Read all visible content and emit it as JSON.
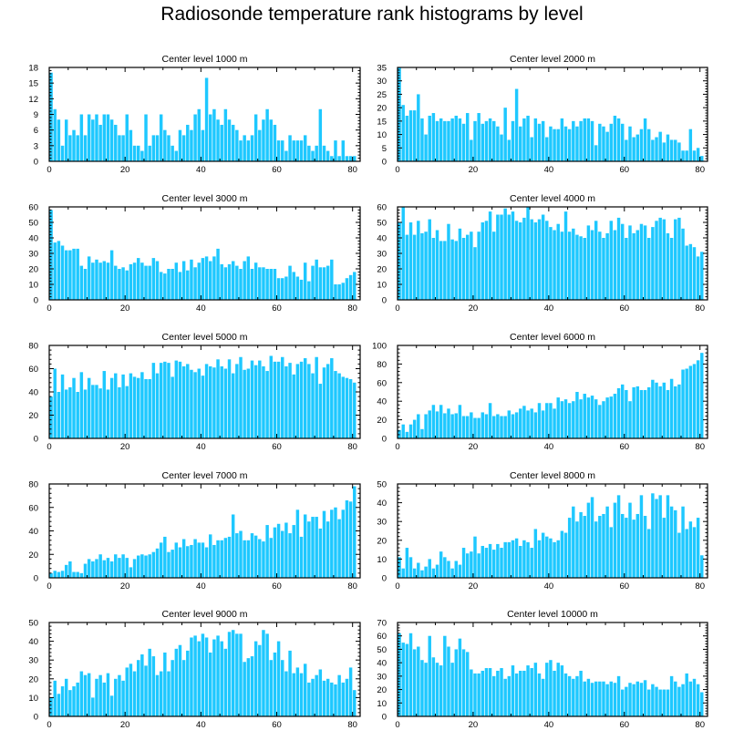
{
  "title": "Radiosonde temperature rank histograms by level",
  "colors": {
    "bar": "#1ec8ff",
    "bar_edge": "#ffffff",
    "axis": "#000000",
    "background": "#ffffff"
  },
  "chart_data": [
    {
      "type": "bar",
      "title": "Center level 1000 m",
      "xlim": [
        0,
        82
      ],
      "ylim": [
        0,
        18
      ],
      "xticks": [
        0,
        20,
        40,
        60,
        80
      ],
      "yticks": [
        0,
        3,
        6,
        9,
        12,
        15,
        18
      ],
      "values": [
        17,
        10,
        8,
        3,
        8,
        5,
        6,
        5,
        9,
        5,
        9,
        8,
        9,
        7,
        9,
        9,
        8,
        7,
        5,
        5,
        9,
        6,
        3,
        3,
        2,
        9,
        3,
        5,
        5,
        9,
        6,
        5,
        3,
        2,
        6,
        5,
        7,
        6,
        9,
        10,
        6,
        16,
        9,
        10,
        8,
        7,
        10,
        8,
        7,
        6,
        4,
        5,
        4,
        5,
        9,
        6,
        8,
        10,
        8,
        7,
        4,
        4,
        2,
        5,
        4,
        4,
        4,
        5,
        3,
        2,
        3,
        10,
        3,
        2,
        1,
        4,
        1,
        4,
        1,
        1,
        1
      ]
    },
    {
      "type": "bar",
      "title": "Center level 2000 m",
      "xlim": [
        0,
        82
      ],
      "ylim": [
        0,
        35
      ],
      "xticks": [
        0,
        20,
        40,
        60,
        80
      ],
      "yticks": [
        0,
        5,
        10,
        15,
        20,
        25,
        30,
        35
      ],
      "values": [
        35,
        21,
        17,
        19,
        19,
        25,
        16,
        10,
        17,
        18,
        15,
        16,
        15,
        15,
        16,
        17,
        16,
        14,
        18,
        8,
        15,
        18,
        14,
        15,
        16,
        15,
        13,
        10,
        20,
        8,
        15,
        27,
        13,
        16,
        17,
        9,
        16,
        14,
        15,
        9,
        13,
        12,
        12,
        16,
        13,
        12,
        15,
        13,
        15,
        16,
        16,
        15,
        6,
        14,
        13,
        11,
        14,
        17,
        16,
        14,
        8,
        13,
        9,
        10,
        12,
        16,
        12,
        8,
        9,
        11,
        7,
        10,
        8,
        8,
        7,
        4,
        4,
        12,
        4,
        5,
        2
      ]
    },
    {
      "type": "bar",
      "title": "Center level 3000 m",
      "xlim": [
        0,
        82
      ],
      "ylim": [
        0,
        60
      ],
      "xticks": [
        0,
        20,
        40,
        60,
        80
      ],
      "yticks": [
        0,
        10,
        20,
        30,
        40,
        50,
        60
      ],
      "values": [
        58,
        37,
        38,
        35,
        32,
        32,
        33,
        33,
        22,
        20,
        28,
        24,
        26,
        24,
        25,
        24,
        32,
        22,
        20,
        21,
        19,
        23,
        24,
        27,
        24,
        22,
        22,
        27,
        25,
        18,
        17,
        20,
        20,
        24,
        18,
        25,
        19,
        26,
        21,
        24,
        27,
        28,
        25,
        28,
        33,
        23,
        21,
        23,
        25,
        22,
        20,
        25,
        28,
        20,
        24,
        21,
        21,
        20,
        20,
        20,
        14,
        14,
        15,
        22,
        18,
        15,
        13,
        24,
        12,
        22,
        26,
        21,
        21,
        22,
        26,
        10,
        10,
        11,
        14,
        16,
        18
      ]
    },
    {
      "type": "bar",
      "title": "Center level 4000 m",
      "xlim": [
        0,
        82
      ],
      "ylim": [
        0,
        60
      ],
      "xticks": [
        0,
        20,
        40,
        60,
        80
      ],
      "yticks": [
        0,
        10,
        20,
        30,
        40,
        50,
        60
      ],
      "values": [
        50,
        60,
        42,
        50,
        42,
        51,
        43,
        44,
        52,
        40,
        45,
        38,
        38,
        49,
        39,
        38,
        46,
        40,
        42,
        44,
        34,
        44,
        50,
        51,
        57,
        44,
        55,
        55,
        59,
        55,
        57,
        51,
        50,
        53,
        60,
        52,
        50,
        52,
        55,
        51,
        47,
        45,
        49,
        44,
        57,
        44,
        46,
        42,
        41,
        40,
        48,
        45,
        51,
        44,
        40,
        43,
        51,
        45,
        53,
        49,
        40,
        48,
        43,
        45,
        49,
        48,
        40,
        47,
        51,
        53,
        52,
        43,
        40,
        52,
        53,
        46,
        35,
        36,
        34,
        28,
        31
      ]
    },
    {
      "type": "bar",
      "title": "Center level 5000 m",
      "xlim": [
        0,
        82
      ],
      "ylim": [
        0,
        80
      ],
      "xticks": [
        0,
        20,
        40,
        60,
        80
      ],
      "yticks": [
        0,
        20,
        40,
        60,
        80
      ],
      "values": [
        36,
        60,
        40,
        55,
        42,
        44,
        52,
        40,
        57,
        42,
        52,
        46,
        46,
        43,
        58,
        42,
        52,
        56,
        44,
        55,
        45,
        56,
        53,
        52,
        57,
        51,
        51,
        65,
        56,
        65,
        66,
        65,
        53,
        67,
        66,
        62,
        64,
        59,
        57,
        60,
        54,
        64,
        62,
        61,
        68,
        62,
        60,
        68,
        56,
        64,
        70,
        59,
        60,
        67,
        63,
        67,
        62,
        58,
        71,
        66,
        66,
        70,
        62,
        65,
        55,
        64,
        66,
        69,
        64,
        56,
        70,
        47,
        61,
        64,
        69,
        58,
        56,
        53,
        52,
        51,
        48
      ]
    },
    {
      "type": "bar",
      "title": "Center level 6000 m",
      "xlim": [
        0,
        82
      ],
      "ylim": [
        0,
        100
      ],
      "xticks": [
        0,
        20,
        40,
        60,
        80
      ],
      "yticks": [
        0,
        20,
        40,
        60,
        80,
        100
      ],
      "values": [
        9,
        15,
        7,
        15,
        20,
        26,
        10,
        26,
        30,
        36,
        29,
        36,
        27,
        32,
        26,
        27,
        36,
        24,
        24,
        28,
        22,
        22,
        28,
        26,
        38,
        24,
        26,
        24,
        24,
        30,
        26,
        28,
        32,
        35,
        30,
        32,
        28,
        38,
        30,
        38,
        38,
        32,
        44,
        40,
        42,
        38,
        40,
        50,
        42,
        48,
        44,
        46,
        42,
        36,
        40,
        44,
        45,
        48,
        54,
        58,
        52,
        40,
        55,
        56,
        52,
        52,
        55,
        63,
        60,
        56,
        60,
        52,
        64,
        56,
        58,
        74,
        75,
        78,
        80,
        84,
        92
      ]
    },
    {
      "type": "bar",
      "title": "Center level 7000 m",
      "xlim": [
        0,
        82
      ],
      "ylim": [
        0,
        80
      ],
      "xticks": [
        0,
        20,
        40,
        60,
        80
      ],
      "yticks": [
        0,
        20,
        40,
        60,
        80
      ],
      "values": [
        4,
        6,
        5,
        6,
        11,
        14,
        5,
        5,
        4,
        12,
        16,
        14,
        16,
        20,
        15,
        17,
        14,
        20,
        17,
        20,
        17,
        9,
        16,
        19,
        20,
        19,
        20,
        22,
        25,
        30,
        35,
        22,
        24,
        30,
        26,
        33,
        27,
        28,
        33,
        30,
        30,
        26,
        37,
        28,
        32,
        32,
        34,
        35,
        54,
        38,
        40,
        32,
        32,
        38,
        36,
        33,
        31,
        45,
        34,
        43,
        46,
        40,
        47,
        38,
        45,
        58,
        35,
        54,
        48,
        52,
        52,
        42,
        57,
        48,
        58,
        60,
        50,
        58,
        66,
        65,
        78
      ]
    },
    {
      "type": "bar",
      "title": "Center level 8000 m",
      "xlim": [
        0,
        82
      ],
      "ylim": [
        0,
        50
      ],
      "xticks": [
        0,
        20,
        40,
        60,
        80
      ],
      "yticks": [
        0,
        10,
        20,
        30,
        40,
        50
      ],
      "values": [
        11,
        5,
        16,
        11,
        5,
        8,
        4,
        6,
        10,
        5,
        7,
        14,
        11,
        9,
        5,
        9,
        7,
        16,
        13,
        14,
        22,
        13,
        17,
        16,
        18,
        15,
        18,
        16,
        19,
        19,
        20,
        21,
        17,
        20,
        19,
        16,
        26,
        20,
        24,
        22,
        21,
        19,
        20,
        25,
        24,
        32,
        38,
        30,
        35,
        33,
        40,
        43,
        30,
        33,
        34,
        38,
        27,
        40,
        44,
        34,
        32,
        40,
        31,
        34,
        44,
        33,
        26,
        45,
        42,
        44,
        32,
        44,
        38,
        36,
        24,
        38,
        26,
        30,
        27,
        32,
        12
      ]
    },
    {
      "type": "bar",
      "title": "Center level 9000 m",
      "xlim": [
        0,
        82
      ],
      "ylim": [
        0,
        50
      ],
      "xticks": [
        0,
        20,
        40,
        60,
        80
      ],
      "yticks": [
        0,
        10,
        20,
        30,
        40,
        50
      ],
      "values": [
        10,
        19,
        12,
        16,
        20,
        14,
        16,
        18,
        24,
        22,
        23,
        10,
        20,
        22,
        18,
        23,
        11,
        20,
        22,
        19,
        26,
        28,
        24,
        30,
        33,
        27,
        36,
        32,
        22,
        24,
        34,
        24,
        30,
        36,
        38,
        30,
        35,
        42,
        43,
        40,
        44,
        42,
        34,
        41,
        43,
        40,
        36,
        45,
        46,
        44,
        44,
        29,
        31,
        32,
        40,
        38,
        46,
        44,
        30,
        34,
        40,
        30,
        24,
        35,
        23,
        26,
        23,
        28,
        18,
        20,
        22,
        25,
        19,
        20,
        18,
        17,
        22,
        18,
        20,
        26,
        14
      ]
    },
    {
      "type": "bar",
      "title": "Center level 10000 m",
      "xlim": [
        0,
        82
      ],
      "ylim": [
        0,
        70
      ],
      "xticks": [
        0,
        20,
        40,
        60,
        80
      ],
      "yticks": [
        0,
        10,
        20,
        30,
        40,
        50,
        60,
        70
      ],
      "values": [
        62,
        55,
        54,
        62,
        50,
        52,
        42,
        40,
        60,
        44,
        40,
        38,
        60,
        52,
        40,
        50,
        58,
        50,
        48,
        35,
        32,
        32,
        34,
        36,
        36,
        30,
        34,
        36,
        28,
        30,
        38,
        32,
        34,
        34,
        38,
        36,
        40,
        32,
        28,
        40,
        42,
        34,
        40,
        38,
        32,
        30,
        28,
        30,
        34,
        26,
        28,
        25,
        26,
        26,
        26,
        24,
        26,
        25,
        30,
        20,
        22,
        25,
        24,
        26,
        25,
        27,
        20,
        24,
        22,
        20,
        20,
        20,
        30,
        26,
        22,
        24,
        32,
        26,
        28,
        24,
        18
      ]
    }
  ]
}
